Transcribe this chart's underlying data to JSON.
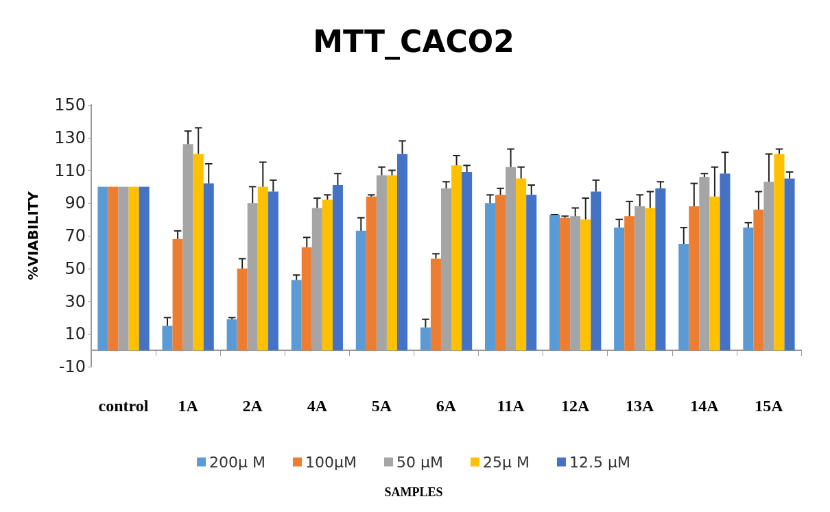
{
  "chart_data": {
    "type": "bar",
    "title": "MTT_CACO2",
    "annotations": [
      "SAMPLES"
    ],
    "ylabel": "%VIABILITY",
    "categories": [
      "control",
      "1A",
      "2A",
      "4A",
      "5A",
      "6A",
      "11A",
      "12A",
      "13A",
      "14A",
      "15A"
    ],
    "ylim": [
      -10,
      150
    ],
    "yticks": [
      -10,
      10,
      30,
      50,
      70,
      90,
      110,
      130,
      150
    ],
    "grid": false,
    "legend": "bottom",
    "series": [
      {
        "name": "200μ M",
        "color": "#5b9bd5",
        "values": [
          100,
          15,
          19,
          43,
          73,
          14,
          90,
          83,
          75,
          65,
          75
        ],
        "errors": [
          null,
          [
            15,
            20
          ],
          [
            19,
            20
          ],
          [
            43,
            46
          ],
          [
            73,
            81
          ],
          [
            14,
            19
          ],
          [
            90,
            95
          ],
          [
            83,
            83
          ],
          [
            75,
            80
          ],
          [
            65,
            75
          ],
          [
            75,
            78
          ]
        ]
      },
      {
        "name": "100μM",
        "color": "#ed7d31",
        "values": [
          100,
          68,
          50,
          63,
          94,
          56,
          95,
          81,
          82,
          88,
          86
        ],
        "errors": [
          null,
          [
            68,
            73
          ],
          [
            50,
            56
          ],
          [
            63,
            69
          ],
          [
            94,
            95
          ],
          [
            56,
            59
          ],
          [
            95,
            99
          ],
          [
            81,
            82
          ],
          [
            82,
            91
          ],
          [
            88,
            102
          ],
          [
            86,
            97
          ]
        ]
      },
      {
        "name": "50 μM",
        "color": "#a5a5a5",
        "values": [
          100,
          126,
          90,
          87,
          107,
          99,
          112,
          82,
          88,
          106,
          103
        ],
        "errors": [
          null,
          [
            126,
            134
          ],
          [
            90,
            100
          ],
          [
            87,
            93
          ],
          [
            107,
            112
          ],
          [
            99,
            103
          ],
          [
            112,
            123
          ],
          [
            82,
            87
          ],
          [
            88,
            95
          ],
          [
            106,
            108
          ],
          [
            103,
            120
          ]
        ]
      },
      {
        "name": "25μ M",
        "color": "#ffc000",
        "values": [
          100,
          120,
          100,
          92,
          107,
          113,
          105,
          80,
          87,
          94,
          120
        ],
        "errors": [
          null,
          [
            120,
            136
          ],
          [
            100,
            115
          ],
          [
            92,
            95
          ],
          [
            107,
            110
          ],
          [
            113,
            119
          ],
          [
            105,
            112
          ],
          [
            80,
            93
          ],
          [
            87,
            97
          ],
          [
            94,
            112
          ],
          [
            120,
            123
          ]
        ]
      },
      {
        "name": "12.5 μM",
        "color": "#4472c4",
        "values": [
          100,
          102,
          97,
          101,
          120,
          109,
          95,
          97,
          99,
          108,
          105
        ],
        "errors": [
          null,
          [
            102,
            114
          ],
          [
            97,
            104
          ],
          [
            101,
            108
          ],
          [
            120,
            128
          ],
          [
            109,
            113
          ],
          [
            95,
            101
          ],
          [
            97,
            104
          ],
          [
            99,
            103
          ],
          [
            108,
            121
          ],
          [
            105,
            109
          ]
        ]
      }
    ]
  }
}
